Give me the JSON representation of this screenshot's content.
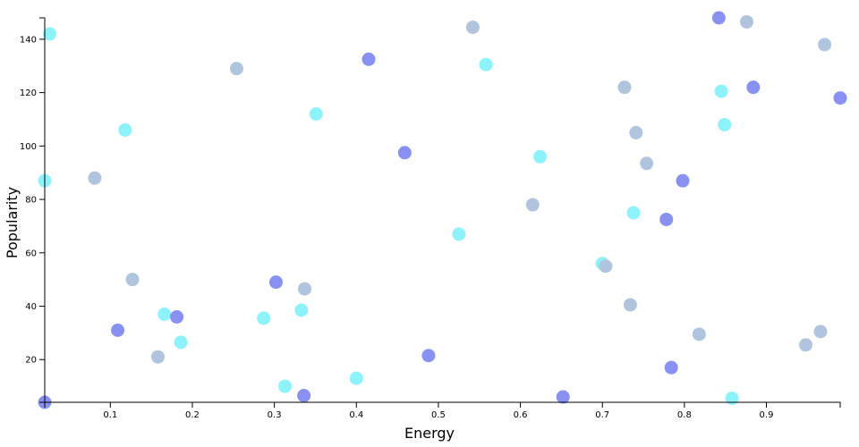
{
  "chart_data": {
    "type": "scatter",
    "title": "",
    "xlabel": "Energy",
    "ylabel": "Popularity",
    "xlim": [
      0.02,
      0.99
    ],
    "ylim": [
      4,
      148
    ],
    "x_ticks": [
      0.1,
      0.2,
      0.3,
      0.4,
      0.5,
      0.6,
      0.7,
      0.8,
      0.9
    ],
    "x_tick_labels": [
      "0.1",
      "0.2",
      "0.3",
      "0.4",
      "0.5",
      "0.6",
      "0.7",
      "0.8",
      "0.9"
    ],
    "y_ticks": [
      20,
      40,
      60,
      80,
      100,
      120,
      140
    ],
    "y_tick_labels": [
      "20",
      "40",
      "60",
      "80",
      "100",
      "120",
      "140"
    ],
    "grid": false,
    "legend": "none",
    "colors": {
      "blue": "#8891f0",
      "cyan": "#8ef2fb",
      "gray": "#b0c4de"
    },
    "points": [
      {
        "x": 0.02,
        "y": 4,
        "color": "blue"
      },
      {
        "x": 0.026,
        "y": 142,
        "color": "cyan"
      },
      {
        "x": 0.02,
        "y": 87,
        "color": "cyan"
      },
      {
        "x": 0.081,
        "y": 88,
        "color": "gray"
      },
      {
        "x": 0.109,
        "y": 31,
        "color": "blue"
      },
      {
        "x": 0.118,
        "y": 106,
        "color": "cyan"
      },
      {
        "x": 0.127,
        "y": 50,
        "color": "gray"
      },
      {
        "x": 0.158,
        "y": 21,
        "color": "gray"
      },
      {
        "x": 0.166,
        "y": 37,
        "color": "cyan"
      },
      {
        "x": 0.181,
        "y": 36,
        "color": "blue"
      },
      {
        "x": 0.186,
        "y": 26.5,
        "color": "cyan"
      },
      {
        "x": 0.254,
        "y": 129,
        "color": "gray"
      },
      {
        "x": 0.287,
        "y": 35.5,
        "color": "cyan"
      },
      {
        "x": 0.302,
        "y": 49,
        "color": "blue"
      },
      {
        "x": 0.313,
        "y": 10,
        "color": "cyan"
      },
      {
        "x": 0.333,
        "y": 38.5,
        "color": "cyan"
      },
      {
        "x": 0.336,
        "y": 6.5,
        "color": "blue"
      },
      {
        "x": 0.337,
        "y": 46.5,
        "color": "gray"
      },
      {
        "x": 0.351,
        "y": 112,
        "color": "cyan"
      },
      {
        "x": 0.4,
        "y": 13,
        "color": "cyan"
      },
      {
        "x": 0.415,
        "y": 132.5,
        "color": "blue"
      },
      {
        "x": 0.459,
        "y": 97.5,
        "color": "blue"
      },
      {
        "x": 0.488,
        "y": 21.5,
        "color": "blue"
      },
      {
        "x": 0.525,
        "y": 67,
        "color": "cyan"
      },
      {
        "x": 0.542,
        "y": 144.5,
        "color": "gray"
      },
      {
        "x": 0.558,
        "y": 130.5,
        "color": "cyan"
      },
      {
        "x": 0.615,
        "y": 78,
        "color": "gray"
      },
      {
        "x": 0.624,
        "y": 96,
        "color": "cyan"
      },
      {
        "x": 0.652,
        "y": 6,
        "color": "blue"
      },
      {
        "x": 0.7,
        "y": 56,
        "color": "cyan"
      },
      {
        "x": 0.704,
        "y": 55,
        "color": "gray"
      },
      {
        "x": 0.727,
        "y": 122,
        "color": "gray"
      },
      {
        "x": 0.734,
        "y": 40.5,
        "color": "gray"
      },
      {
        "x": 0.738,
        "y": 75,
        "color": "cyan"
      },
      {
        "x": 0.741,
        "y": 105,
        "color": "gray"
      },
      {
        "x": 0.754,
        "y": 93.5,
        "color": "gray"
      },
      {
        "x": 0.778,
        "y": 72.5,
        "color": "blue"
      },
      {
        "x": 0.784,
        "y": 17,
        "color": "blue"
      },
      {
        "x": 0.798,
        "y": 87,
        "color": "blue"
      },
      {
        "x": 0.818,
        "y": 29.5,
        "color": "gray"
      },
      {
        "x": 0.842,
        "y": 148,
        "color": "blue"
      },
      {
        "x": 0.845,
        "y": 120.5,
        "color": "cyan"
      },
      {
        "x": 0.849,
        "y": 108,
        "color": "cyan"
      },
      {
        "x": 0.858,
        "y": 5.5,
        "color": "cyan"
      },
      {
        "x": 0.876,
        "y": 146.5,
        "color": "gray"
      },
      {
        "x": 0.884,
        "y": 122,
        "color": "blue"
      },
      {
        "x": 0.948,
        "y": 25.5,
        "color": "gray"
      },
      {
        "x": 0.966,
        "y": 30.5,
        "color": "gray"
      },
      {
        "x": 0.971,
        "y": 138,
        "color": "gray"
      },
      {
        "x": 0.99,
        "y": 118,
        "color": "blue"
      }
    ]
  }
}
